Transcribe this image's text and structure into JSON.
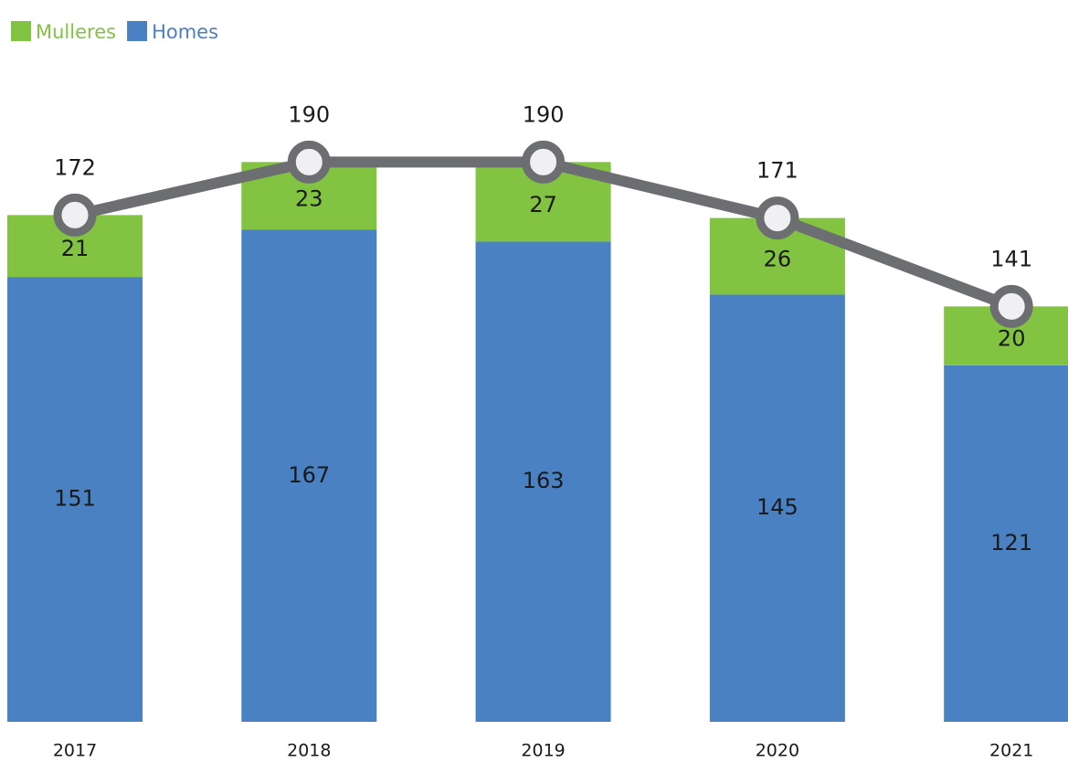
{
  "chart_data": {
    "type": "stacked_bar_line",
    "categories": [
      "2017",
      "2018",
      "2019",
      "2020",
      "2021"
    ],
    "series": [
      {
        "name": "Homes",
        "color": "#4a81c2",
        "values": [
          151,
          167,
          163,
          145,
          121
        ]
      },
      {
        "name": "Mulleres",
        "color": "#82c341",
        "values": [
          21,
          23,
          27,
          26,
          20
        ]
      }
    ],
    "total": {
      "color": "#6d6e71",
      "values": [
        172,
        190,
        190,
        171,
        141
      ]
    },
    "ylim": [
      0,
      245
    ]
  }
}
